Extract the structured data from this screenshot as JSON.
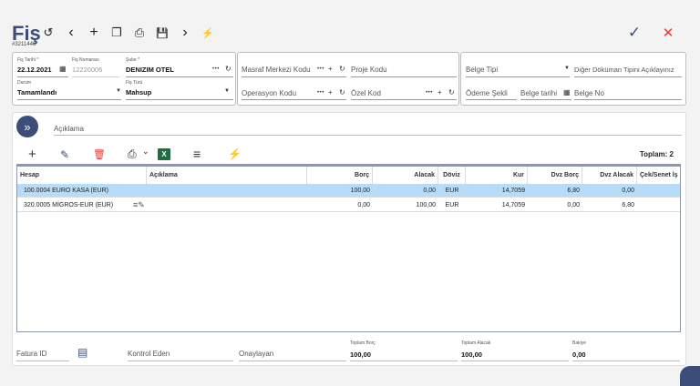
{
  "header": {
    "title": "Fiş",
    "doc_id": "#3211446"
  },
  "toolbar": {
    "history": "↺",
    "prev": "‹",
    "add": "+",
    "copy": "❐",
    "print": "⎙",
    "save": "💾",
    "next": "›",
    "run": "⚡",
    "confirm": "✓",
    "close": "✕"
  },
  "form": {
    "fis_tarihi": {
      "label": "Fiş Tarihi *",
      "value": "22.12.2021"
    },
    "fis_numarasi": {
      "label": "Fiş Numarası",
      "value": "12220006"
    },
    "sube": {
      "label": "Şube *",
      "value": "DENIZIM OTEL"
    },
    "durum": {
      "label": "Durum",
      "value": "Tamamlandı"
    },
    "fis_turu": {
      "label": "Fiş Türü",
      "value": "Mahsup"
    },
    "masraf_merkezi": "Masraf Merkezi Kodu",
    "proje_kodu": "Proje Kodu",
    "operasyon_kodu": "Operasyon Kodu",
    "ozel_kod": "Özel Kod",
    "belge_tipi": "Belge Tipi",
    "diger_dokuman": "Diğer Döküman Tipini Açıklayınız",
    "odeme_sekli": "Ödeme Şekli",
    "belge_tarihi": "Belge tarihi",
    "belge_no": "Belge No"
  },
  "aciklama": {
    "placeholder": "Açıklama",
    "expand_icon": "»"
  },
  "grid_toolbar": {
    "add": "+",
    "edit": "✎",
    "delete": "🗑",
    "print": "⎙",
    "print_caret": "⌄",
    "excel": "X",
    "menu": "≡",
    "run": "⚡",
    "total": "Toplam: 2"
  },
  "columns": [
    "Hesap",
    "Açıklama",
    "Borç",
    "Alacak",
    "Döviz",
    "Kur",
    "Dvz Borç",
    "Dvz Alacak",
    "Çek/Senet İş"
  ],
  "rows": [
    {
      "hesap": "100.0004 EURO KASA (EUR)",
      "aciklama": "",
      "borc": "100,00",
      "alacak": "0,00",
      "doviz": "EUR",
      "kur": "14,7059",
      "dvz_borc": "6,80",
      "dvz_alacak": "0,00"
    },
    {
      "hesap": "320.0005 MİGROS-EUR (EUR)",
      "aciklama": "≡✎",
      "borc": "0,00",
      "alacak": "100,00",
      "doviz": "EUR",
      "kur": "14,7059",
      "dvz_borc": "0,00",
      "dvz_alacak": "6,80"
    }
  ],
  "footer": {
    "fatura_id": "Fatura ID",
    "kontrol_eden": "Kontrol Eden",
    "onaylayan": "Onaylayan",
    "toplam_borc": {
      "label": "Toplam Borç",
      "value": "100,00"
    },
    "toplam_alacak": {
      "label": "Toplam Alacak",
      "value": "100,00"
    },
    "bakiye": {
      "label": "Bakiye",
      "value": "0,00"
    }
  },
  "colors": {
    "accent": "#3d4d7a",
    "selected_row": "#b7dcf7",
    "delete": "#e53935",
    "excel": "#1e6e42",
    "confirm": "#3d4d7a",
    "close": "#e53935"
  }
}
